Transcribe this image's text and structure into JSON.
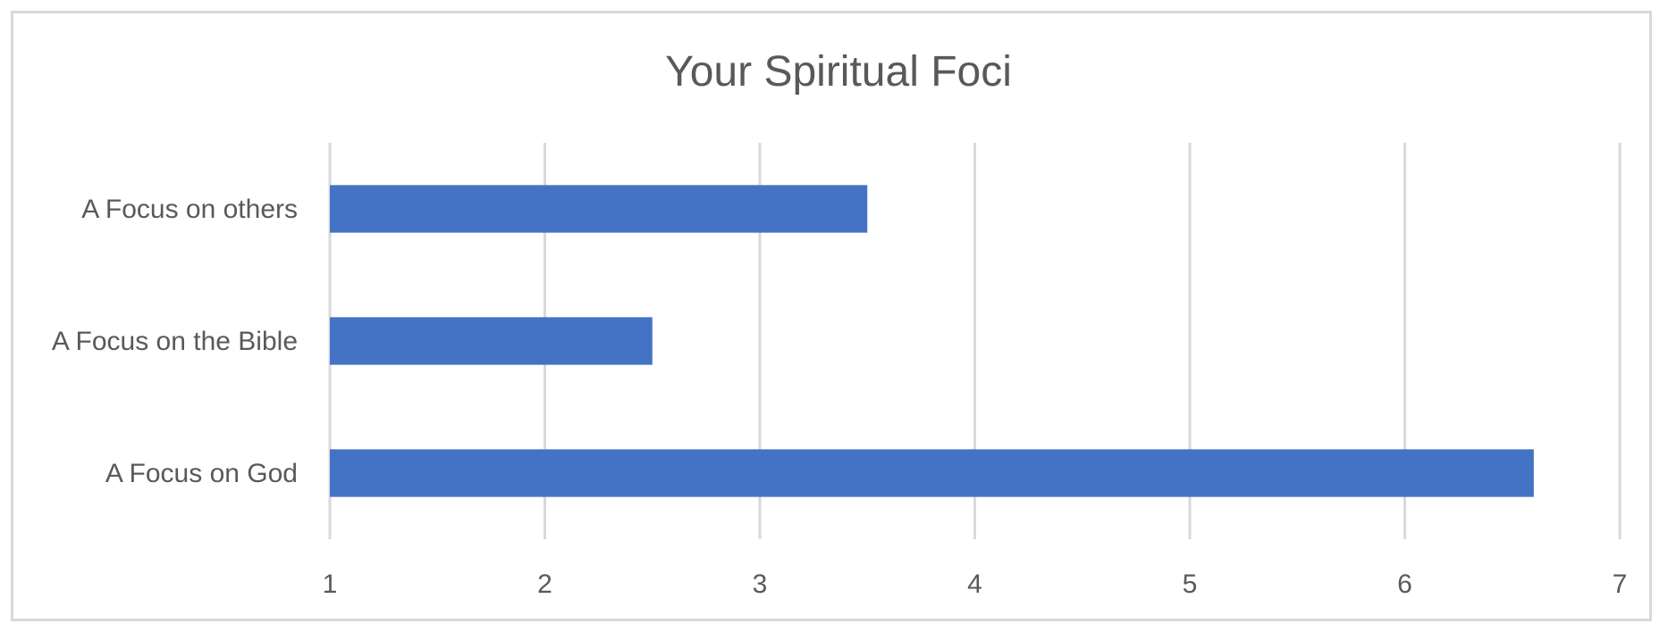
{
  "chart_data": {
    "type": "bar",
    "orientation": "horizontal",
    "title": "Your Spiritual Foci",
    "xlabel": "",
    "ylabel": "",
    "categories": [
      "A Focus on others",
      "A Focus on the Bible",
      "A Focus on God"
    ],
    "values": [
      3.5,
      2.5,
      6.6
    ],
    "xlim": [
      1,
      7
    ],
    "xticks": [
      "1",
      "2",
      "3",
      "4",
      "5",
      "6",
      "7"
    ],
    "grid": true,
    "legend": "none",
    "colors": {
      "bar": "#4472c4",
      "grid": "#d9d9d9",
      "text": "#595959",
      "border": "#d9d9d9"
    }
  }
}
